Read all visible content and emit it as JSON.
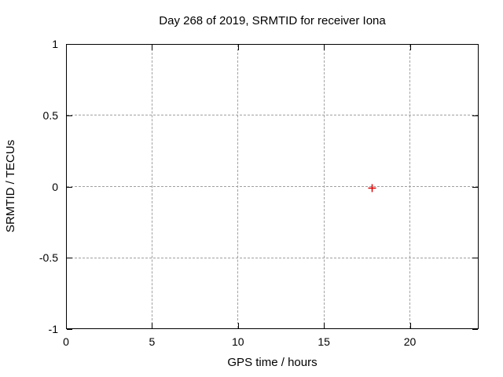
{
  "chart_data": {
    "type": "scatter",
    "title": "Day 268 of 2019, SRMTID for receiver Iona",
    "xlabel": "GPS time / hours",
    "ylabel": "SRMTID / TECUs",
    "xlim": [
      0,
      24
    ],
    "ylim": [
      -1,
      1
    ],
    "xticks": [
      0,
      5,
      10,
      15,
      20
    ],
    "yticks": [
      -1,
      -0.5,
      0,
      0.5,
      1
    ],
    "xtick_labels": [
      "0",
      "5",
      "10",
      "15",
      "20"
    ],
    "ytick_labels": [
      "-1",
      "-0.5",
      "0",
      "0.5",
      "1"
    ],
    "grid": true,
    "legend": false,
    "series": [
      {
        "name": "SRMTID",
        "marker": "plus",
        "color": "#dd0000",
        "points": [
          {
            "x": 17.8,
            "y": 0
          }
        ]
      }
    ],
    "colors": {
      "axis": "#000000",
      "grid": "#a0a0a0",
      "text": "#000000",
      "background": "#ffffff"
    }
  }
}
